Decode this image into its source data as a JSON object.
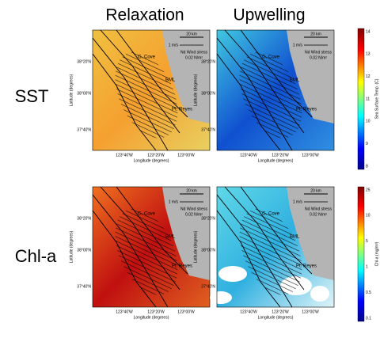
{
  "columns": [
    "Relaxation",
    "Upwelling"
  ],
  "rows": [
    "SST",
    "Chl-a"
  ],
  "map_labels": {
    "lat_ticks": [
      "38°20'N",
      "38°00'N",
      "37°40'N"
    ],
    "lon_ticks": [
      "123°40'W",
      "123°20'W",
      "123°00'W"
    ],
    "x_axis": "Longitude (degrees)",
    "y_axis": "Latitude (degrees)",
    "places": [
      "G. Cove",
      "BML",
      "Pt. Reyes"
    ],
    "scale": "20 km",
    "velocity": "1 m/s",
    "wind_title": "Nd Wind stress",
    "wind_value": "0.02 N/m²"
  },
  "colorbars": [
    {
      "label": "Sea Surface Temp. (C)",
      "ticks": [
        14,
        13,
        12,
        11,
        10,
        9,
        8
      ]
    },
    {
      "label": "Chl-a (mg/m³)",
      "ticks": [
        25,
        10,
        5,
        1.0,
        0.5,
        0.1
      ]
    }
  ]
}
